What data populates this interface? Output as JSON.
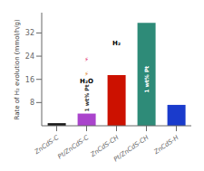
{
  "chart_data": {
    "type": "bar",
    "categories": [
      "ZnCdS-C",
      "Pt/ZnCdS-C",
      "ZnCdS-CH",
      "Pt/ZnCdS-CH",
      "ZnCdS-H"
    ],
    "values": [
      0.9,
      4.2,
      17.5,
      35.5,
      7.2
    ],
    "colors": [
      "#1a1a1a",
      "#aa44cc",
      "#cc1100",
      "#2e8b78",
      "#1a3bcc"
    ],
    "ylabel": "Rate of H₂ evolution (mmol/h/g)",
    "ylim": [
      0,
      39
    ],
    "yticks": [
      8,
      16,
      24,
      32
    ],
    "grid": false,
    "annotations": [
      {
        "text": "1 wt% Pt",
        "category": "Pt/ZnCdS-C"
      },
      {
        "text": "1 wt% Pt",
        "category": "Pt/ZnCdS-CH"
      },
      {
        "text": "H₂O",
        "category": "Pt/ZnCdS-C",
        "y": 15.5
      },
      {
        "text": "H₂",
        "category": "ZnCdS-CH",
        "y": 28.5
      },
      {
        "text": "⚡",
        "category": "Pt/ZnCdS-C",
        "y": 23,
        "color": "#e02060"
      },
      {
        "text": "⚡",
        "category": "Pt/ZnCdS-C",
        "y": 18,
        "color": "#e08020"
      }
    ]
  }
}
